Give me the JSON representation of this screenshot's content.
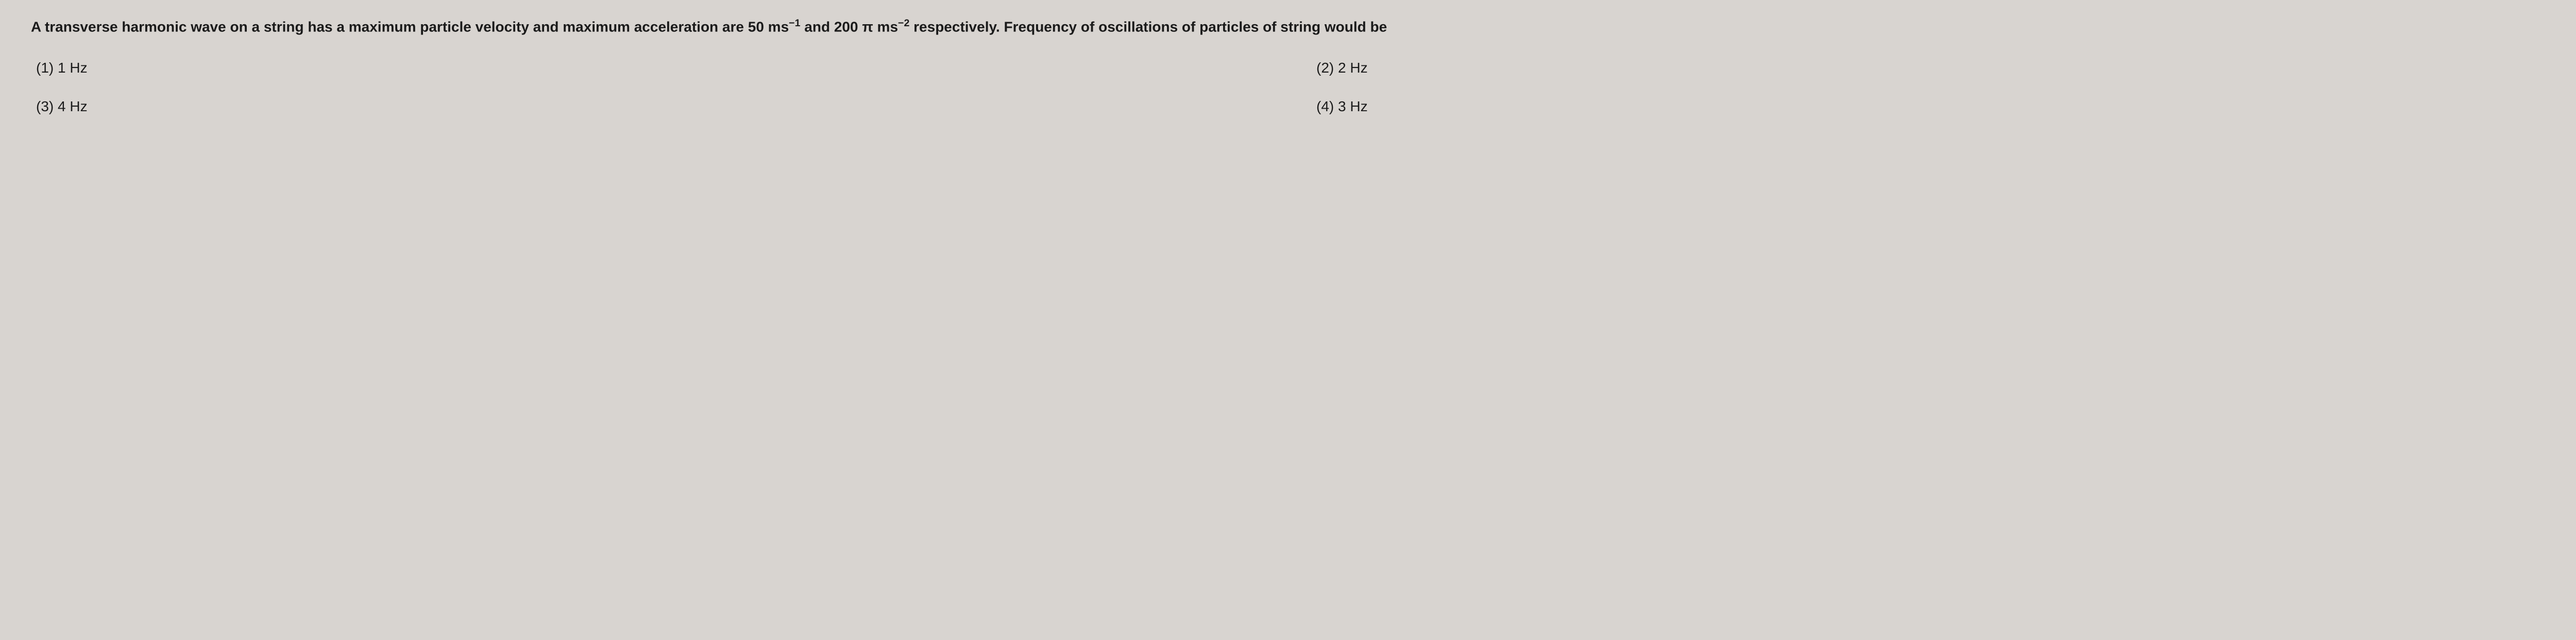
{
  "question": {
    "text_part1": "A transverse harmonic wave on a string has a maximum particle velocity and maximum acceleration are 50 ms",
    "exp1": "−1",
    "text_part2": " and 200 π ms",
    "exp2": "−2",
    "text_part3": " respectively. Frequency of oscillations of particles of string would be"
  },
  "options": {
    "opt1": {
      "label": "(1)",
      "text": "1 Hz"
    },
    "opt2": {
      "label": "(2)",
      "text": "2 Hz"
    },
    "opt3": {
      "label": "(3)",
      "text": "4 Hz"
    },
    "opt4": {
      "label": "(4)",
      "text": "3 Hz"
    }
  },
  "colors": {
    "background": "#d8d4d0",
    "text": "#1a1a1a"
  },
  "typography": {
    "font_family": "Arial, Helvetica, sans-serif",
    "question_fontsize": 28,
    "question_fontweight": 600,
    "option_fontweight": 400
  }
}
